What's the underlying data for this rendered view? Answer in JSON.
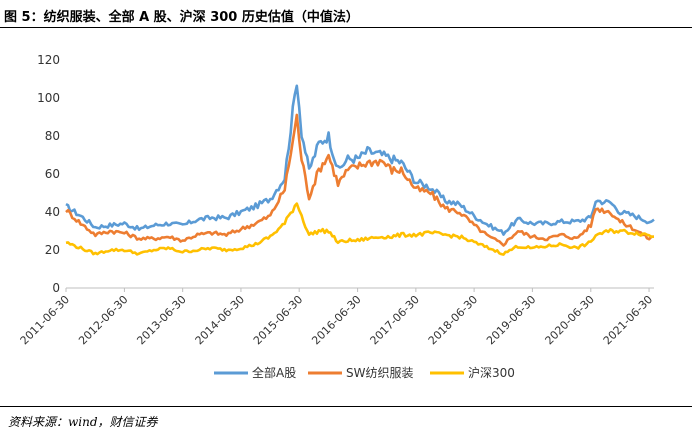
{
  "figure": {
    "title": "图 5：纺织服装、全部 A 股、沪深 300 历史估值（中值法）",
    "source": "资料来源：wind，财信证券"
  },
  "chart_data": {
    "type": "line",
    "title": "",
    "xlabel": "",
    "ylabel": "",
    "ylim": [
      0,
      120
    ],
    "yticks": [
      0,
      20,
      40,
      60,
      80,
      100,
      120
    ],
    "x_tick_labels": [
      "2011-06-30",
      "2012-06-30",
      "2013-06-30",
      "2014-06-30",
      "2015-06-30",
      "2016-06-30",
      "2017-06-30",
      "2018-06-30",
      "2019-06-30",
      "2020-06-30",
      "2021-06-30"
    ],
    "x_range": [
      "2011-06-30",
      "2021-07-31"
    ],
    "grid": false,
    "legend": "bottom",
    "series": [
      {
        "name": "全部A股",
        "color": "#5B9BD5",
        "points": [
          [
            "2011-06-30",
            43
          ],
          [
            "2011-09-30",
            38
          ],
          [
            "2011-12-31",
            32
          ],
          [
            "2012-03-31",
            33
          ],
          [
            "2012-06-30",
            34
          ],
          [
            "2012-09-30",
            31
          ],
          [
            "2012-12-31",
            33
          ],
          [
            "2013-03-31",
            34
          ],
          [
            "2013-06-30",
            33
          ],
          [
            "2013-09-30",
            36
          ],
          [
            "2013-12-31",
            37
          ],
          [
            "2014-03-31",
            37
          ],
          [
            "2014-06-30",
            40
          ],
          [
            "2014-09-30",
            43
          ],
          [
            "2014-12-31",
            47
          ],
          [
            "2015-03-31",
            58
          ],
          [
            "2015-06-15",
            110
          ],
          [
            "2015-07-15",
            82
          ],
          [
            "2015-08-31",
            62
          ],
          [
            "2015-10-31",
            76
          ],
          [
            "2015-12-31",
            80
          ],
          [
            "2016-02-28",
            62
          ],
          [
            "2016-04-30",
            68
          ],
          [
            "2016-06-30",
            68
          ],
          [
            "2016-08-31",
            72
          ],
          [
            "2016-11-30",
            70
          ],
          [
            "2017-01-31",
            68
          ],
          [
            "2017-03-31",
            66
          ],
          [
            "2017-06-30",
            56
          ],
          [
            "2017-09-30",
            53
          ],
          [
            "2017-12-31",
            46
          ],
          [
            "2018-03-31",
            44
          ],
          [
            "2018-06-30",
            38
          ],
          [
            "2018-09-30",
            33
          ],
          [
            "2018-12-31",
            29
          ],
          [
            "2019-03-31",
            36
          ],
          [
            "2019-06-30",
            34
          ],
          [
            "2019-09-30",
            34
          ],
          [
            "2019-12-31",
            35
          ],
          [
            "2020-03-31",
            35
          ],
          [
            "2020-06-30",
            37
          ],
          [
            "2020-07-31",
            46
          ],
          [
            "2020-10-31",
            45
          ],
          [
            "2020-12-31",
            40
          ],
          [
            "2021-03-31",
            38
          ],
          [
            "2021-06-30",
            35
          ],
          [
            "2021-07-31",
            36
          ]
        ]
      },
      {
        "name": "SW纺织服装",
        "color": "#ED7D31",
        "points": [
          [
            "2011-06-30",
            41
          ],
          [
            "2011-09-30",
            34
          ],
          [
            "2011-12-31",
            28
          ],
          [
            "2012-03-31",
            30
          ],
          [
            "2012-06-30",
            29
          ],
          [
            "2012-09-30",
            26
          ],
          [
            "2012-12-31",
            26
          ],
          [
            "2013-03-31",
            27
          ],
          [
            "2013-06-30",
            25
          ],
          [
            "2013-09-30",
            28
          ],
          [
            "2013-12-31",
            29
          ],
          [
            "2014-03-31",
            28
          ],
          [
            "2014-06-30",
            31
          ],
          [
            "2014-09-30",
            34
          ],
          [
            "2014-12-31",
            38
          ],
          [
            "2015-03-31",
            52
          ],
          [
            "2015-06-15",
            90
          ],
          [
            "2015-07-15",
            68
          ],
          [
            "2015-08-31",
            48
          ],
          [
            "2015-10-31",
            62
          ],
          [
            "2015-12-31",
            70
          ],
          [
            "2016-02-28",
            55
          ],
          [
            "2016-04-30",
            62
          ],
          [
            "2016-06-30",
            64
          ],
          [
            "2016-08-31",
            66
          ],
          [
            "2016-11-30",
            67
          ],
          [
            "2017-01-31",
            62
          ],
          [
            "2017-03-31",
            62
          ],
          [
            "2017-06-30",
            52
          ],
          [
            "2017-09-30",
            50
          ],
          [
            "2017-12-31",
            42
          ],
          [
            "2018-03-31",
            40
          ],
          [
            "2018-06-30",
            33
          ],
          [
            "2018-09-30",
            27
          ],
          [
            "2018-12-31",
            23
          ],
          [
            "2019-03-31",
            30
          ],
          [
            "2019-06-30",
            27
          ],
          [
            "2019-09-30",
            26
          ],
          [
            "2019-12-31",
            28
          ],
          [
            "2020-03-31",
            26
          ],
          [
            "2020-06-30",
            33
          ],
          [
            "2020-07-31",
            42
          ],
          [
            "2020-10-31",
            40
          ],
          [
            "2020-12-31",
            35
          ],
          [
            "2021-03-31",
            31
          ],
          [
            "2021-06-30",
            26
          ],
          [
            "2021-07-31",
            27
          ]
        ]
      },
      {
        "name": "沪深300",
        "color": "#FFC000",
        "points": [
          [
            "2011-06-30",
            24
          ],
          [
            "2011-09-30",
            21
          ],
          [
            "2011-12-31",
            18
          ],
          [
            "2012-03-31",
            20
          ],
          [
            "2012-06-30",
            20
          ],
          [
            "2012-09-30",
            18
          ],
          [
            "2012-12-31",
            20
          ],
          [
            "2013-03-31",
            21
          ],
          [
            "2013-06-30",
            19
          ],
          [
            "2013-09-30",
            20
          ],
          [
            "2013-12-31",
            21
          ],
          [
            "2014-03-31",
            20
          ],
          [
            "2014-06-30",
            21
          ],
          [
            "2014-09-30",
            23
          ],
          [
            "2014-12-31",
            27
          ],
          [
            "2015-03-31",
            34
          ],
          [
            "2015-06-15",
            45
          ],
          [
            "2015-07-15",
            38
          ],
          [
            "2015-08-31",
            28
          ],
          [
            "2015-10-31",
            30
          ],
          [
            "2015-12-31",
            30
          ],
          [
            "2016-02-28",
            24
          ],
          [
            "2016-04-30",
            25
          ],
          [
            "2016-06-30",
            25
          ],
          [
            "2016-08-31",
            26
          ],
          [
            "2016-11-30",
            27
          ],
          [
            "2017-01-31",
            27
          ],
          [
            "2017-03-31",
            28
          ],
          [
            "2017-06-30",
            28
          ],
          [
            "2017-09-30",
            29
          ],
          [
            "2017-12-31",
            28
          ],
          [
            "2018-03-31",
            27
          ],
          [
            "2018-06-30",
            24
          ],
          [
            "2018-09-30",
            21
          ],
          [
            "2018-12-31",
            18
          ],
          [
            "2019-03-31",
            22
          ],
          [
            "2019-06-30",
            21
          ],
          [
            "2019-09-30",
            22
          ],
          [
            "2019-12-31",
            23
          ],
          [
            "2020-03-31",
            21
          ],
          [
            "2020-06-30",
            24
          ],
          [
            "2020-07-31",
            28
          ],
          [
            "2020-10-31",
            30
          ],
          [
            "2020-12-31",
            30
          ],
          [
            "2021-03-31",
            29
          ],
          [
            "2021-06-30",
            28
          ],
          [
            "2021-07-31",
            27
          ]
        ]
      }
    ]
  }
}
